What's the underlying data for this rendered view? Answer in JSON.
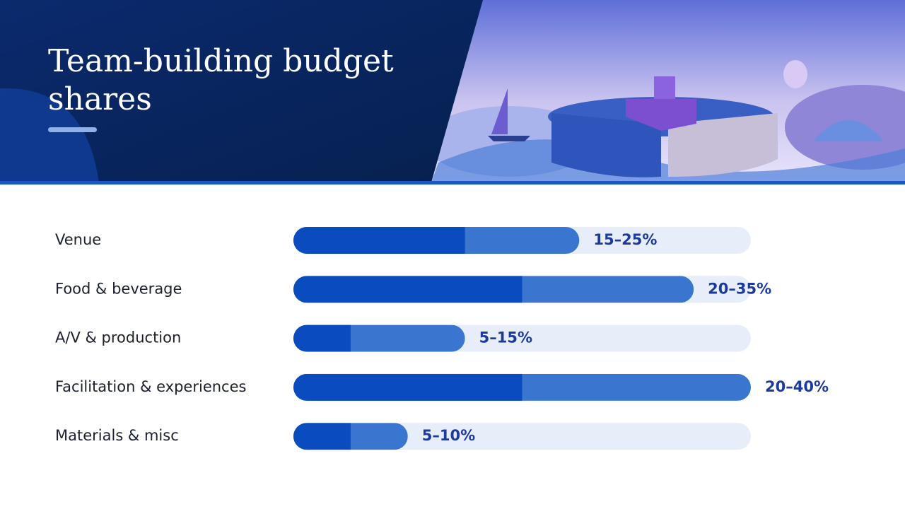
{
  "chart_data": {
    "type": "range-bar",
    "title": "Team-building budget shares",
    "categories": [
      "Venue",
      "Food & beverage",
      "A/V & production",
      "Facilitation & experiences",
      "Materials & misc"
    ],
    "low": [
      15,
      20,
      5,
      20,
      5
    ],
    "high": [
      25,
      35,
      15,
      40,
      10
    ],
    "value_labels": [
      "15–25%",
      "20–35%",
      "5–15%",
      "20–40%",
      "5–10%"
    ],
    "xlim": [
      0,
      40
    ],
    "low_color": "#0b4bc0",
    "high_color": "#3a76cf",
    "track_color": "#e7eef9"
  }
}
